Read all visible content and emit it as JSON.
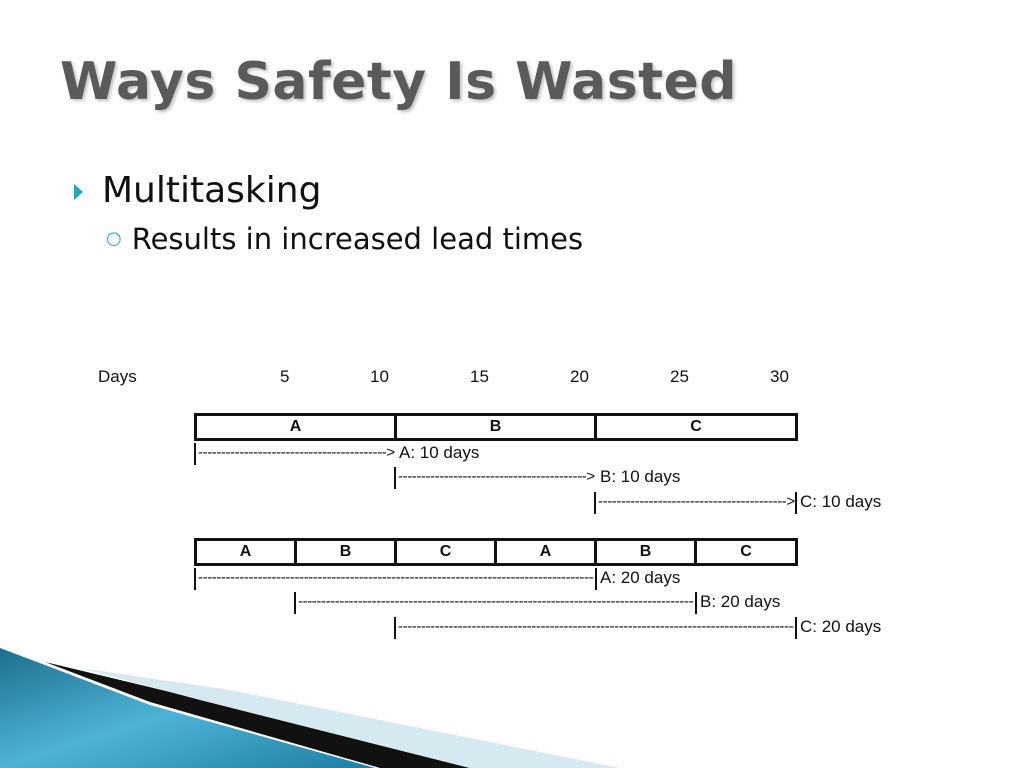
{
  "slide": {
    "title": "Ways Safety Is Wasted",
    "bullets": [
      {
        "text": "Multitasking"
      },
      {
        "text": "Results in increased lead times"
      }
    ]
  },
  "timeline": {
    "axis_label": "Days",
    "ticks": [
      "5",
      "10",
      "15",
      "20",
      "25",
      "30"
    ],
    "sequential": {
      "segments": [
        "A",
        "B",
        "C"
      ],
      "durations": [
        "A:  10 days",
        "B:  10 days",
        "C:  10 days"
      ]
    },
    "multitasked": {
      "segments": [
        "A",
        "B",
        "C",
        "A",
        "B",
        "C"
      ],
      "durations": [
        "A:  20 days",
        "B:  20 days",
        "C:  20 days"
      ]
    }
  },
  "colors": {
    "accent": "#2e9fc0",
    "title": "#5a5a5a"
  }
}
